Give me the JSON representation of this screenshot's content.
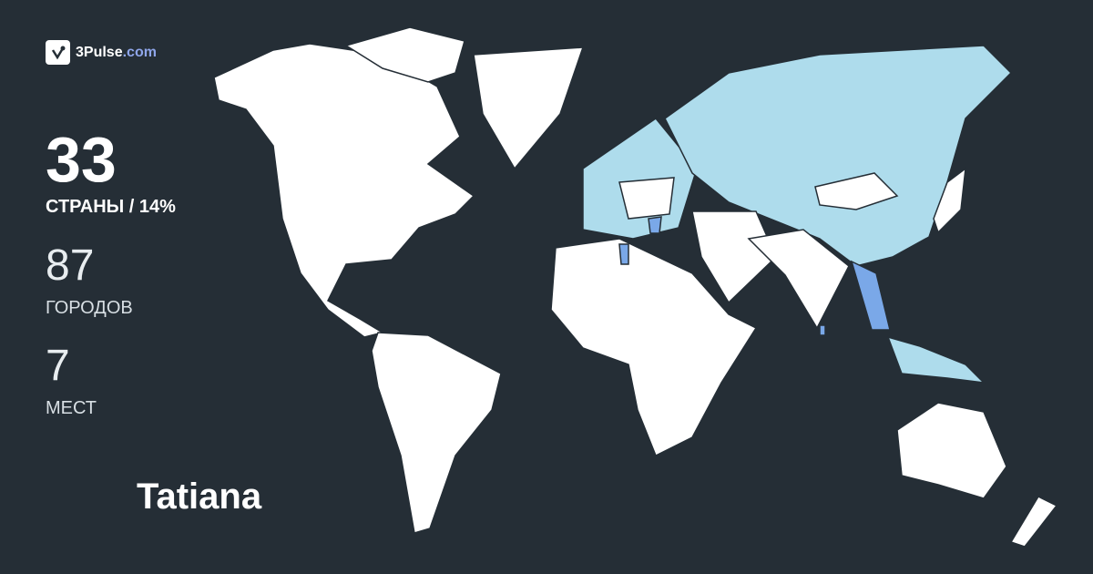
{
  "brand": {
    "name": "3Pulse",
    "domain": ".com"
  },
  "stats": {
    "countries": {
      "value": "33",
      "label": "СТРАНЫ / 14%"
    },
    "cities": {
      "value": "87",
      "label": "ГОРОДОВ"
    },
    "places": {
      "value": "7",
      "label": "МЕСТ"
    }
  },
  "user": {
    "name": "Tatiana"
  },
  "map": {
    "colors": {
      "background": "#252e36",
      "unvisited": "#ffffff",
      "visited_region": "#aedcec",
      "visited_highlight": "#7aa8e8"
    },
    "highlighted_regions": [
      "Europe (partial)",
      "Russia",
      "China",
      "Central Asia",
      "Southeast Asia",
      "Myanmar",
      "Thailand",
      "Greece",
      "Tunisia",
      "Sri Lanka"
    ]
  }
}
